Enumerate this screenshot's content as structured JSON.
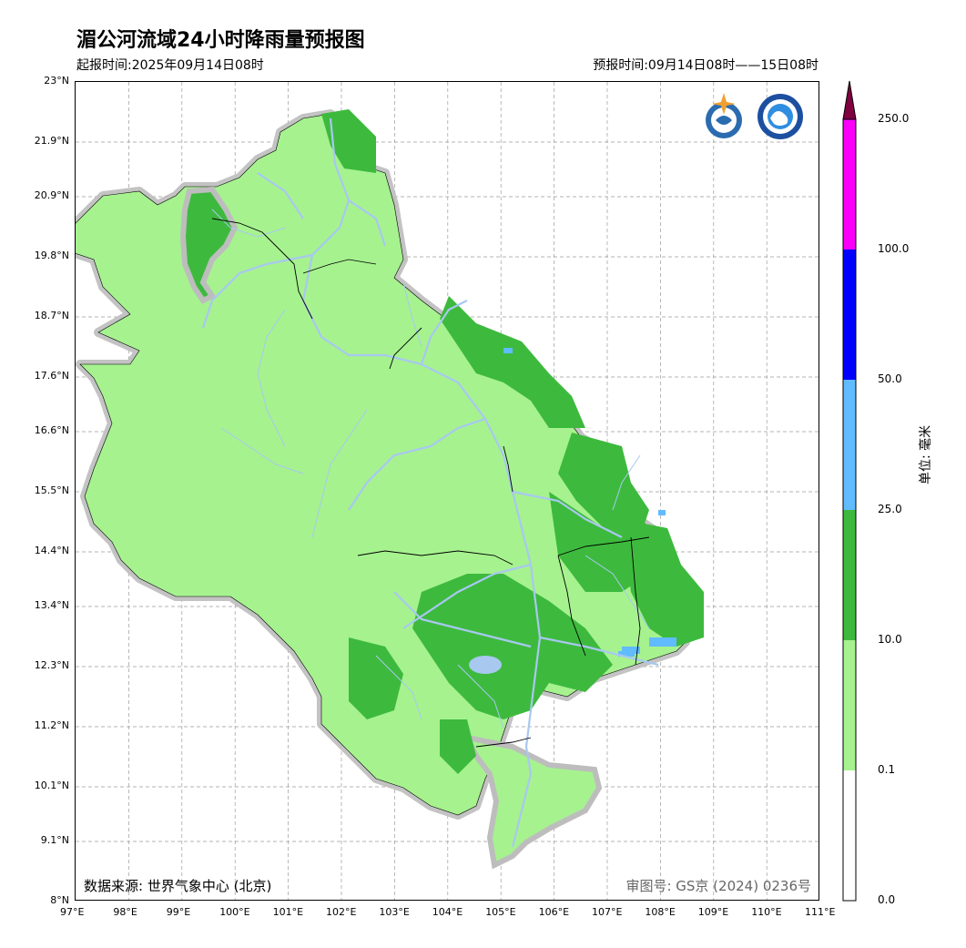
{
  "header": {
    "title": "湄公河流域24小时降雨量预报图",
    "issue_time": "起报时间:2025年09月14日08时",
    "forecast_time": "预报时间:09月14日08时——15日08时"
  },
  "map": {
    "lat_ticks": [
      "23°N",
      "21.9°N",
      "20.9°N",
      "19.8°N",
      "18.7°N",
      "17.6°N",
      "16.6°N",
      "15.5°N",
      "14.4°N",
      "13.4°N",
      "12.3°N",
      "11.2°N",
      "10.1°N",
      "9.1°N",
      "8°N"
    ],
    "lon_ticks": [
      "97°E",
      "98°E",
      "99°E",
      "100°E",
      "101°E",
      "102°E",
      "103°E",
      "104°E",
      "105°E",
      "106°E",
      "107°E",
      "108°E",
      "109°E",
      "110°E",
      "111°E"
    ],
    "source_text": "数据来源: 世界气象中心 (北京)",
    "review_number": "审图号: GS京 (2024) 0236号",
    "colors": {
      "light_green": "#a6f28f",
      "dark_green": "#3dba3d",
      "light_blue": "#61bbff",
      "blue": "#0000ff",
      "magenta": "#fa00fa",
      "top": "#800040",
      "river": "#a8c8f0",
      "outline": "#bdbdbd"
    },
    "logos": [
      "wmo-logo-icon",
      "cma-logo-icon"
    ]
  },
  "legend": {
    "labels": [
      "250.0",
      "100.0",
      "50.0",
      "25.0",
      "10.0",
      "0.1",
      "0.0"
    ],
    "unit": "单位: 毫米"
  }
}
